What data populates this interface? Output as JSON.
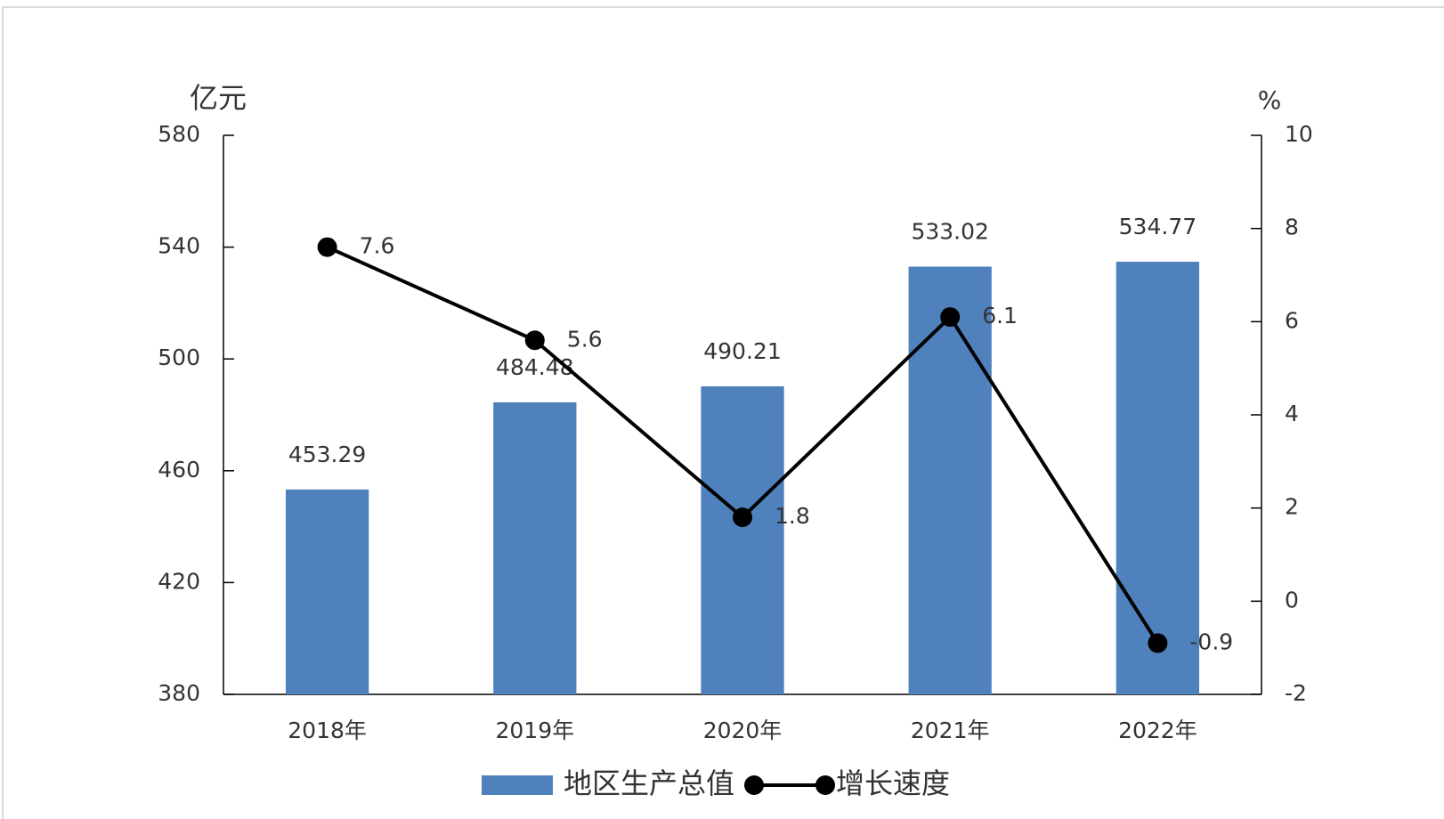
{
  "chart_data": {
    "type": "bar",
    "y_label": "亿元",
    "y2_label": "%",
    "categories": [
      "2018年",
      "2019年",
      "2020年",
      "2021年",
      "2022年"
    ],
    "series": [
      {
        "name": "地区生产总值",
        "type": "bar",
        "color": "#4f81bd",
        "values": [
          453.29,
          484.48,
          490.21,
          533.02,
          534.77
        ]
      },
      {
        "name": "增长速度",
        "type": "line",
        "color": "#000000",
        "axis": "y2",
        "values": [
          7.6,
          5.6,
          1.8,
          6.1,
          -0.9
        ]
      }
    ],
    "ylim": [
      380,
      580
    ],
    "yticks": [
      380,
      420,
      460,
      500,
      540,
      580
    ],
    "y2lim": [
      -2,
      10
    ],
    "y2ticks": [
      -2,
      0,
      2,
      4,
      6,
      8,
      10
    ],
    "grid": false,
    "legend": "bottom"
  }
}
